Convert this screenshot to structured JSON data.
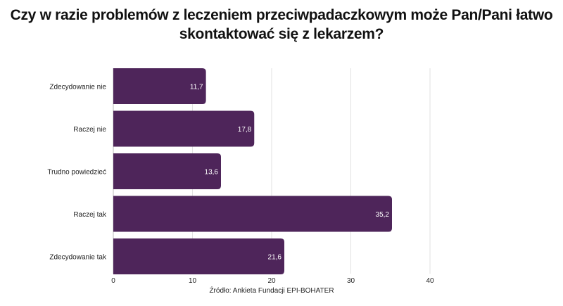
{
  "chart_data": {
    "type": "bar",
    "orientation": "horizontal",
    "title": "Czy w razie problemów z leczeniem przeciwpadaczkowym może Pan/Pani łatwo skontaktować się z lekarzem?",
    "categories": [
      "Zdecydowanie nie",
      "Raczej nie",
      "Trudno powiedzieć",
      "Raczej tak",
      "Zdecydowanie tak"
    ],
    "values": [
      11.7,
      17.8,
      13.6,
      35.2,
      21.6
    ],
    "value_labels": [
      "11,7",
      "17,8",
      "13,6",
      "35,2",
      "21,6"
    ],
    "xlim": [
      0,
      40
    ],
    "xticks": [
      0,
      10,
      20,
      30,
      40
    ],
    "grid": true,
    "bar_color": "#4e255a",
    "source": "Źródło: Ankieta Fundacji EPI-BOHATER"
  }
}
